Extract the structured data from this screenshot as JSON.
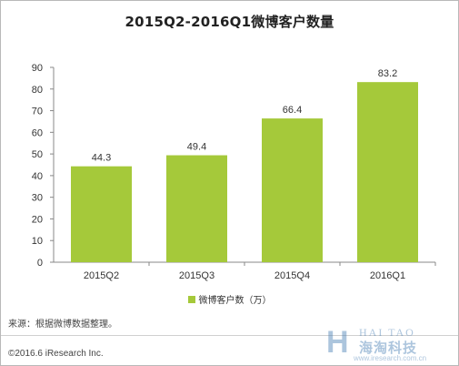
{
  "chart_data": {
    "type": "bar",
    "title": "2015Q2-2016Q1微博客户数量",
    "categories": [
      "2015Q2",
      "2015Q3",
      "2015Q4",
      "2016Q1"
    ],
    "series": [
      {
        "name": "微博客户数（万）",
        "values": [
          44.3,
          49.4,
          66.4,
          83.2
        ],
        "color": "#a5c93a"
      }
    ],
    "ylim": [
      0,
      90
    ],
    "yticks": [
      0,
      10,
      20,
      30,
      40,
      50,
      60,
      70,
      80,
      90
    ],
    "grid": false,
    "legend_position": "bottom"
  },
  "source": "来源：根据微博数据整理。",
  "copyright": "©2016.6 iResearch Inc.",
  "watermark": {
    "letter": "H",
    "english": "HAI TAO",
    "chinese": "海淘科技",
    "url": "www.iresearch.com.cn"
  }
}
